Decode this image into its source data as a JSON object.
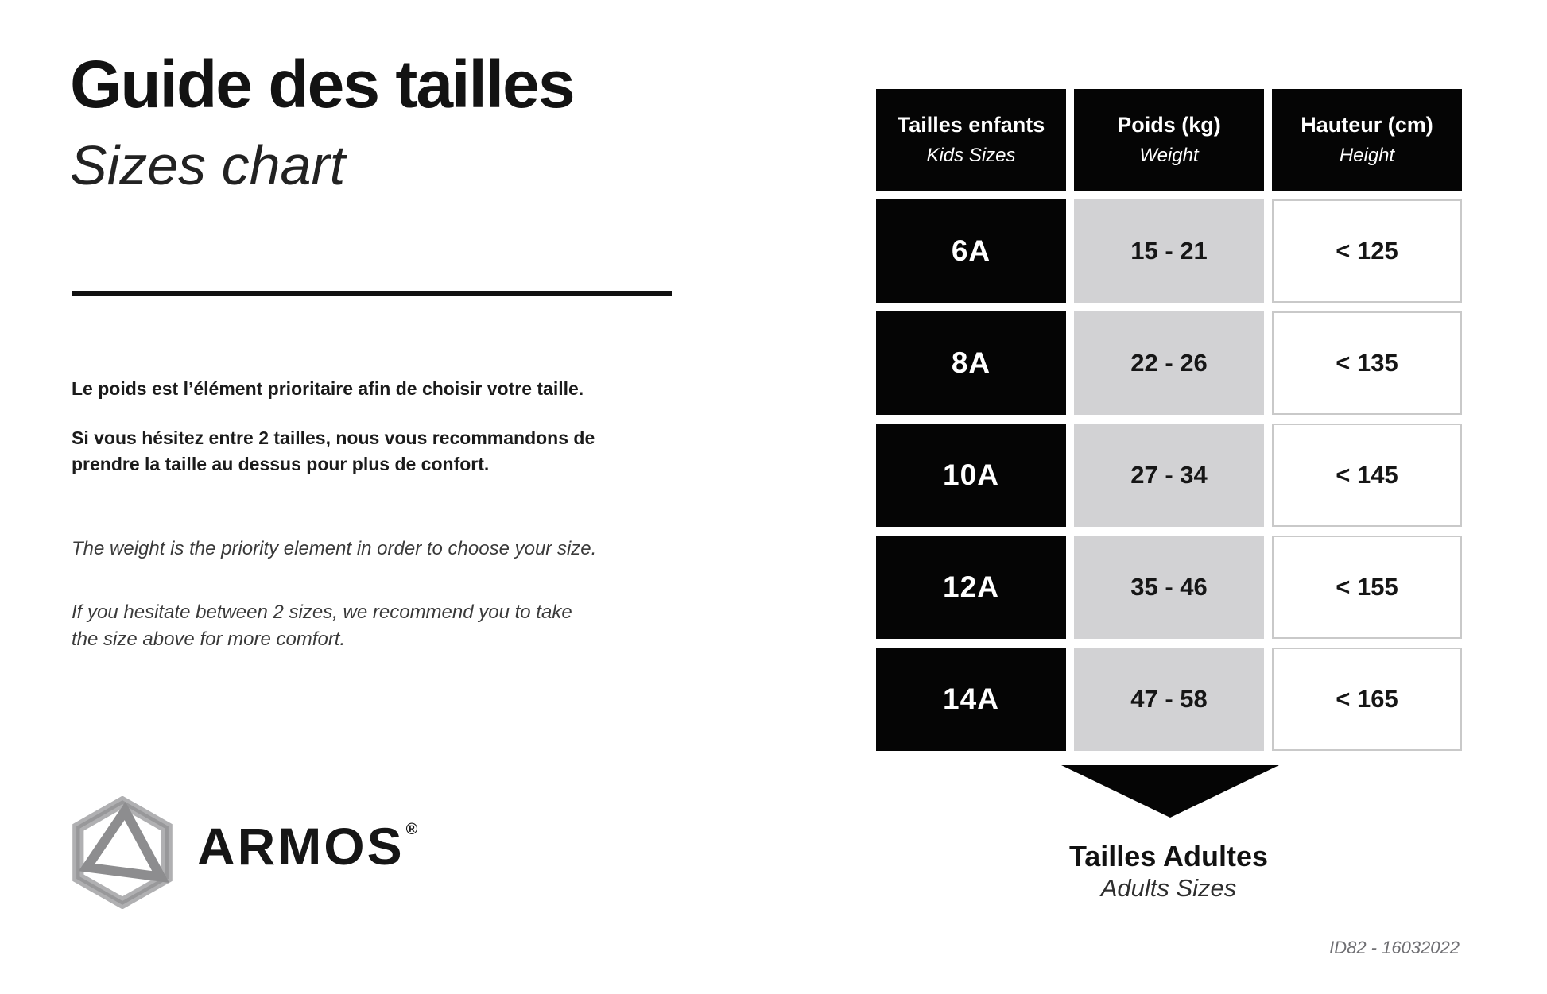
{
  "page": {
    "title_fr": "Guide des tailles",
    "title_en": "Sizes chart",
    "fr_paragraph1": "Le poids est l’élément prioritaire afin de choisir votre taille.",
    "fr_paragraph2": "Si vous hésitez entre 2 tailles, nous vous recommandons de prendre la taille au dessus pour plus de confort.",
    "en_paragraph1": "The weight is the priority element in order to choose your size.",
    "en_paragraph2": "If you hesitate between 2 sizes, we recommend you to take the size above for more comfort.",
    "footer_id": "ID82 - 16032022"
  },
  "brand": {
    "name": "ARMOS",
    "registered": "®",
    "logo_icon": "armos-hexagon-triangle-logo"
  },
  "chart_data": {
    "type": "table",
    "title": "Guide des tailles / Sizes chart",
    "columns": [
      {
        "fr": "Tailles enfants",
        "en": "Kids Sizes"
      },
      {
        "fr": "Poids (kg)",
        "en": "Weight"
      },
      {
        "fr": "Hauteur (cm)",
        "en": "Height"
      }
    ],
    "rows": [
      {
        "size": "6A",
        "weight": "15 - 21",
        "height": "< 125"
      },
      {
        "size": "8A",
        "weight": "22 - 26",
        "height": "< 135"
      },
      {
        "size": "10A",
        "weight": "27 - 34",
        "height": "< 145"
      },
      {
        "size": "12A",
        "weight": "35 - 46",
        "height": "< 155"
      },
      {
        "size": "14A",
        "weight": "47 - 58",
        "height": "< 165"
      }
    ]
  },
  "adults": {
    "fr": "Tailles Adultes",
    "en": "Adults Sizes",
    "arrow_icon": "down-arrow"
  },
  "colors": {
    "cell_black": "#050505",
    "cell_gray": "#d2d2d4",
    "cell_border": "#c9c9c9",
    "logo_gray_light": "#b9b9bb",
    "logo_gray_dark": "#8d8d8f",
    "footer_gray": "#6f6f73"
  }
}
